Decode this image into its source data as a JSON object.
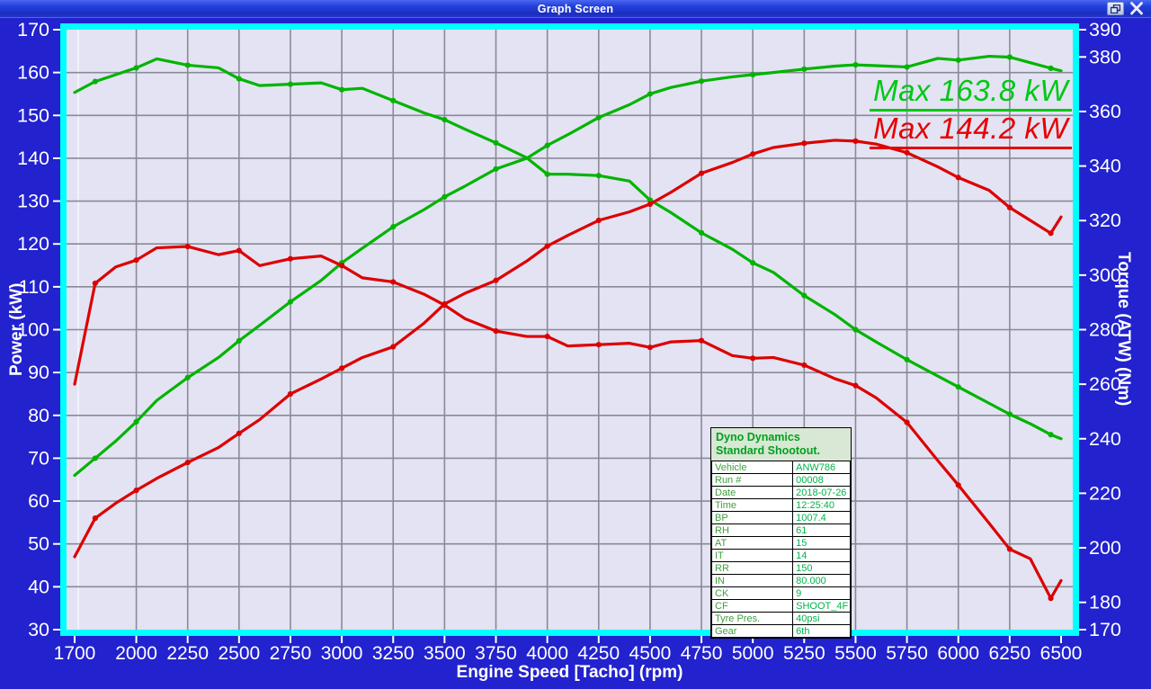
{
  "window": {
    "title": "Graph Screen"
  },
  "chart_data": {
    "type": "line",
    "xlabel": "Engine Speed [Tacho] (rpm)",
    "ylabel_left": "Power (kW)",
    "ylabel_right": "Torque (ATW) (Nm)",
    "x_range": [
      1700,
      6500
    ],
    "x_ticks": [
      1700,
      2000,
      2250,
      2500,
      2750,
      3000,
      3250,
      3500,
      3750,
      4000,
      4250,
      4500,
      4750,
      5000,
      5250,
      5500,
      5750,
      6000,
      6250,
      6500
    ],
    "y_left": {
      "min": 30,
      "max": 170,
      "ticks": [
        30,
        40,
        50,
        60,
        70,
        80,
        90,
        100,
        110,
        120,
        130,
        140,
        150,
        160,
        170
      ]
    },
    "y_right": {
      "min": 170,
      "max": 390,
      "ticks": [
        170,
        180,
        200,
        220,
        240,
        260,
        280,
        300,
        320,
        340,
        360,
        380,
        390
      ]
    },
    "grid": true,
    "legend": "none",
    "annotations": [
      {
        "text": "Max 163.8 kW",
        "color": "#00C814",
        "series": "green run"
      },
      {
        "text": "Max 144.2 kW",
        "color": "#E60000",
        "series": "red run"
      }
    ],
    "x_shared": [
      1700,
      1800,
      1900,
      2000,
      2100,
      2250,
      2400,
      2500,
      2600,
      2750,
      2900,
      3000,
      3100,
      3250,
      3400,
      3500,
      3600,
      3750,
      3900,
      4000,
      4100,
      4250,
      4400,
      4500,
      4600,
      4750,
      4900,
      5000,
      5100,
      5250,
      5400,
      5500,
      5600,
      5750,
      5900,
      6000,
      6150,
      6250,
      6350,
      6450,
      6500
    ],
    "series": [
      {
        "key": "power-green",
        "name": "Power - green run",
        "unit": "kW",
        "axis": "left",
        "color": "#00B400",
        "max": 163.8,
        "values": [
          66,
          70,
          74,
          78.5,
          83.5,
          88.8,
          93.5,
          97.4,
          101,
          106.5,
          111.5,
          115.6,
          119,
          124,
          128,
          131,
          133.5,
          137.5,
          140,
          143,
          145.5,
          149.5,
          152.5,
          155,
          156.5,
          158,
          159,
          159.5,
          160,
          160.8,
          161.5,
          161.8,
          161.6,
          161.3,
          163.3,
          162.9,
          163.8,
          163.6,
          162.3,
          161,
          160.4
        ]
      },
      {
        "key": "torque-green",
        "name": "Torque - green run",
        "unit": "Nm",
        "axis": "right",
        "color": "#00B400",
        "max": 379.5,
        "values": [
          367,
          371,
          373.5,
          376,
          379.3,
          377,
          376,
          372,
          369.5,
          370,
          370.5,
          368,
          368.5,
          364,
          359.5,
          357,
          353.5,
          348.5,
          343,
          337,
          337,
          336.5,
          334.5,
          327.5,
          323,
          315.5,
          309.5,
          304.5,
          301,
          292.5,
          285.5,
          280,
          275.5,
          269,
          263,
          259,
          253,
          249,
          245.5,
          241.5,
          240
        ]
      },
      {
        "key": "power-red",
        "name": "Power - red run",
        "unit": "kW",
        "axis": "left",
        "color": "#DC0000",
        "max": 144.2,
        "values": [
          47,
          56,
          59.5,
          62.5,
          65.3,
          69,
          72.5,
          75.8,
          79,
          85,
          88.5,
          91,
          93.5,
          96,
          101.5,
          106,
          108.5,
          111.5,
          116,
          119.5,
          122,
          125.5,
          127.5,
          129.3,
          132,
          136.5,
          139,
          141,
          142.5,
          143.5,
          144.2,
          144,
          143.3,
          141.3,
          138,
          135.5,
          132.5,
          128.5,
          125.5,
          122.5,
          126.3
        ]
      },
      {
        "key": "torque-red",
        "name": "Torque - red run",
        "unit": "Nm",
        "axis": "right",
        "color": "#DC0000",
        "max": 310.5,
        "values": [
          260,
          297,
          303,
          305.5,
          310,
          310.5,
          307.5,
          309,
          303.5,
          306,
          307,
          303.5,
          299,
          297.5,
          293,
          289,
          284,
          279.5,
          277.5,
          277.5,
          274,
          274.5,
          275,
          273.5,
          275.5,
          276,
          270.5,
          269.5,
          269.8,
          267,
          262,
          259.5,
          255,
          246,
          232,
          223,
          209,
          199.5,
          196,
          181.5,
          188
        ]
      }
    ],
    "colors": {
      "plot_background": "#E3E3F3",
      "outer_background": "#2222CE",
      "frame": "#00FFFF",
      "grid": "#8A8A96",
      "tick_text": "#FFFFFF"
    }
  },
  "info_box": {
    "header_line1": "Dyno Dynamics",
    "header_line2": "Standard Shootout.",
    "rows": [
      [
        "Vehicle",
        "ANW786"
      ],
      [
        "Run #",
        "00008"
      ],
      [
        "Date",
        "2018-07-26"
      ],
      [
        "Time",
        "12:25:40"
      ],
      [
        "BP",
        "1007.4"
      ],
      [
        "RH",
        "61"
      ],
      [
        "AT",
        "15"
      ],
      [
        "IT",
        "14"
      ],
      [
        "RR",
        "150"
      ],
      [
        "IN",
        "80.000"
      ],
      [
        "CK",
        "9"
      ],
      [
        "CF",
        "SHOOT_4F"
      ],
      [
        "Tyre Pres.",
        "40psi"
      ],
      [
        "Gear",
        "6th"
      ]
    ]
  }
}
